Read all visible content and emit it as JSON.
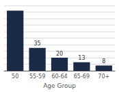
{
  "chart_data": {
    "type": "bar",
    "xlabel": "Age Group",
    "categories": [
      "50",
      "55-59",
      "60-64",
      "65-69",
      "70+"
    ],
    "values": [
      92,
      35,
      20,
      13,
      8
    ],
    "value_labels": [
      null,
      "35",
      "20",
      "13",
      "8"
    ],
    "color": "#1b2a45",
    "ylim": [
      0,
      100
    ],
    "yticks": [
      0,
      10,
      20,
      30,
      40,
      50,
      60,
      70,
      80,
      90,
      100
    ],
    "grid": true,
    "data_labels": true,
    "tick_labels": "x"
  }
}
